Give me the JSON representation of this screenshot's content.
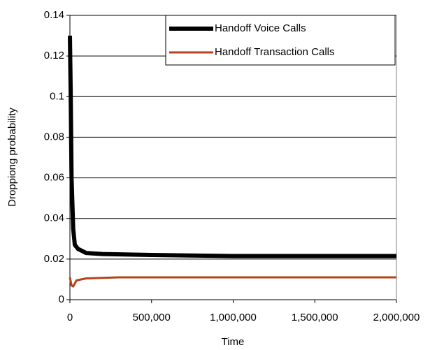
{
  "chart_data": {
    "type": "line",
    "x_label": "Time",
    "y_label": "Droppiong probability",
    "xlim": [
      0,
      2000000
    ],
    "xticks": [
      0,
      {
        "value": 500000,
        "label": "500,000"
      },
      {
        "value": 1000000,
        "label": "1,000,000"
      },
      {
        "value": 1500000,
        "label": "1,500,000"
      },
      {
        "value": 2000000,
        "label": "2,000,000"
      }
    ],
    "ylim": [
      0,
      0.14
    ],
    "yticks": [
      0,
      0.02,
      0.04,
      0.06,
      0.08,
      0.1,
      0.12,
      0.14
    ],
    "grid": true,
    "legend": "upper right",
    "series": [
      {
        "name": "Handoff Voice Calls",
        "color": "#000000",
        "x": [
          0,
          5000,
          10000,
          20000,
          30000,
          50000,
          100000,
          200000,
          500000,
          1000000,
          2000000
        ],
        "values": [
          0.13,
          0.1,
          0.06,
          0.035,
          0.027,
          0.025,
          0.023,
          0.0225,
          0.022,
          0.0215,
          0.0215
        ]
      },
      {
        "name": "Handoff Transaction Calls",
        "color": "#b5431a",
        "x": [
          0,
          10000,
          20000,
          40000,
          100000,
          300000,
          2000000
        ],
        "values": [
          0.011,
          0.007,
          0.0065,
          0.0095,
          0.0105,
          0.011,
          0.011
        ]
      }
    ]
  }
}
